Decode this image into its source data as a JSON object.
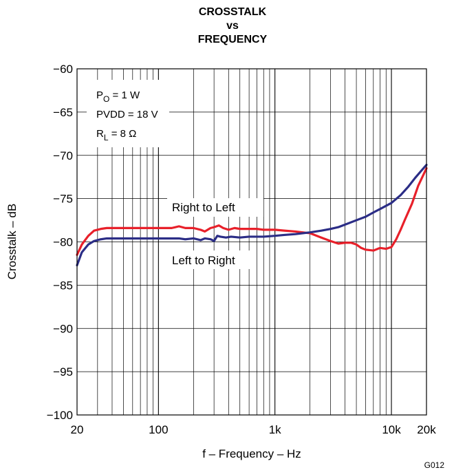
{
  "chart_data": {
    "type": "line",
    "title": [
      "CROSSTALK",
      "vs",
      "FREQUENCY"
    ],
    "xlabel": "f – Frequency – Hz",
    "ylabel": "Crosstalk – dB",
    "xscale": "log",
    "xlim": [
      20,
      20000
    ],
    "ylim": [
      -100,
      -60
    ],
    "grid": true,
    "x_ticks": [
      20,
      100,
      1000,
      10000,
      20000
    ],
    "x_tick_labels": [
      "20",
      "100",
      "1k",
      "10k",
      "20k"
    ],
    "y_ticks": [
      -60,
      -65,
      -70,
      -75,
      -80,
      -85,
      -90,
      -95,
      -100
    ],
    "y_tick_labels": [
      "−60",
      "−65",
      "−70",
      "−75",
      "−80",
      "−85",
      "−90",
      "−95",
      "−100"
    ],
    "conditions": [
      {
        "symbol": "P",
        "sub": "O",
        "text": " = 1 W"
      },
      {
        "symbol": "PVDD",
        "sub": "",
        "text": " = 18 V"
      },
      {
        "symbol": "R",
        "sub": "L",
        "text": " = 8 Ω"
      }
    ],
    "series": [
      {
        "name": "Right to Left",
        "color": "#e8202a",
        "x": [
          20,
          22,
          25,
          28,
          32,
          36,
          40,
          50,
          60,
          80,
          100,
          130,
          150,
          170,
          200,
          230,
          250,
          280,
          300,
          330,
          360,
          400,
          450,
          500,
          600,
          700,
          800,
          1000,
          1200,
          1500,
          2000,
          2500,
          3000,
          3500,
          4000,
          4500,
          5000,
          5500,
          6000,
          7000,
          8000,
          9000,
          10000,
          11000,
          12000,
          13000,
          15000,
          17000,
          20000
        ],
        "y": [
          -81.5,
          -80.3,
          -79.3,
          -78.7,
          -78.5,
          -78.4,
          -78.4,
          -78.4,
          -78.4,
          -78.4,
          -78.4,
          -78.4,
          -78.2,
          -78.4,
          -78.4,
          -78.6,
          -78.8,
          -78.4,
          -78.3,
          -78.1,
          -78.4,
          -78.6,
          -78.4,
          -78.5,
          -78.5,
          -78.5,
          -78.6,
          -78.6,
          -78.7,
          -78.8,
          -79.0,
          -79.5,
          -79.9,
          -80.2,
          -80.1,
          -80.1,
          -80.3,
          -80.7,
          -80.9,
          -81.0,
          -80.7,
          -80.8,
          -80.6,
          -79.7,
          -78.6,
          -77.5,
          -75.6,
          -73.5,
          -71.5
        ]
      },
      {
        "name": "Left to Right",
        "color": "#2b2d86",
        "x": [
          20,
          22,
          25,
          28,
          32,
          36,
          40,
          50,
          60,
          80,
          100,
          130,
          150,
          170,
          200,
          230,
          250,
          280,
          300,
          320,
          340,
          380,
          420,
          500,
          600,
          700,
          800,
          1000,
          1200,
          1500,
          2000,
          2500,
          3000,
          3500,
          4000,
          5000,
          6000,
          7000,
          8000,
          10000,
          12000,
          14000,
          16000,
          18000,
          20000
        ],
        "y": [
          -82.7,
          -81.2,
          -80.3,
          -79.9,
          -79.7,
          -79.6,
          -79.6,
          -79.6,
          -79.6,
          -79.6,
          -79.6,
          -79.6,
          -79.6,
          -79.7,
          -79.6,
          -79.8,
          -79.6,
          -79.7,
          -79.9,
          -79.3,
          -79.4,
          -79.5,
          -79.4,
          -79.5,
          -79.4,
          -79.4,
          -79.4,
          -79.3,
          -79.2,
          -79.1,
          -78.9,
          -78.7,
          -78.5,
          -78.3,
          -78.0,
          -77.5,
          -77.1,
          -76.6,
          -76.2,
          -75.5,
          -74.6,
          -73.6,
          -72.6,
          -71.8,
          -71.1
        ]
      }
    ],
    "annotations": [
      "Right to Left",
      "Left to Right"
    ],
    "figure_code": "G012"
  }
}
